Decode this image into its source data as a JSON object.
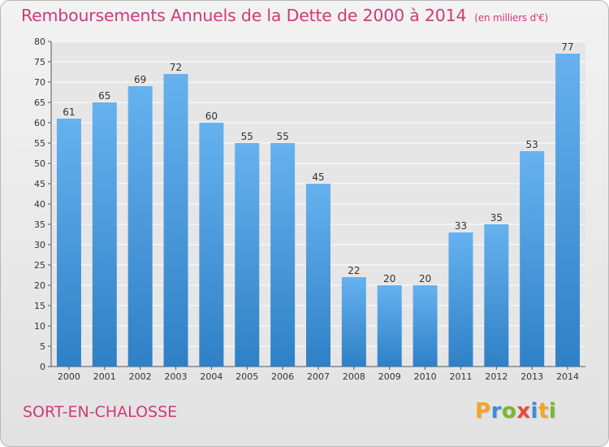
{
  "header": {
    "title": "Remboursements Annuels de la Dette de 2000 à 2014",
    "unit": "(en milliers d'€)"
  },
  "footer": {
    "commune": "SORT-EN-CHALOSSE",
    "logo": "Proxiti",
    "logo_colors": [
      "#f5a623",
      "#3b8ed8",
      "#7ab829",
      "#e84c3d",
      "#3b8ed8",
      "#f5a623",
      "#7ab829"
    ]
  },
  "colors": {
    "accent": "#cf3a78",
    "bar_light": "#66b2ef",
    "bar_dark": "#2f80c6"
  },
  "chart_data": {
    "type": "bar",
    "title": "Remboursements Annuels de la Dette de 2000 à 2014",
    "categories": [
      "2000",
      "2001",
      "2002",
      "2003",
      "2004",
      "2005",
      "2006",
      "2007",
      "2008",
      "2009",
      "2010",
      "2011",
      "2012",
      "2013",
      "2014"
    ],
    "values": [
      61,
      65,
      69,
      72,
      60,
      55,
      55,
      45,
      22,
      20,
      20,
      33,
      35,
      53,
      77
    ],
    "ylim": [
      0,
      80
    ],
    "yticks": [
      0,
      5,
      10,
      15,
      20,
      25,
      30,
      35,
      40,
      45,
      50,
      55,
      60,
      65,
      70,
      75,
      80
    ],
    "xlabel": "",
    "ylabel": "",
    "grid": true,
    "data_labels": true
  }
}
